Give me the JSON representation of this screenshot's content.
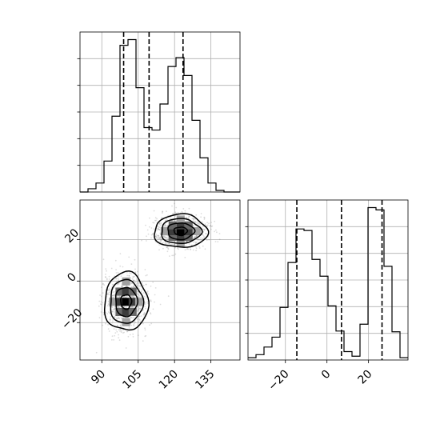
{
  "chart_data": [
    {
      "type": "histogram",
      "variable": "x",
      "xlim": [
        81,
        147
      ],
      "bins": {
        "start": 81,
        "width": 3.3
      },
      "counts": [
        0,
        4,
        11,
        38,
        93,
        180,
        187,
        128,
        79,
        76,
        108,
        154,
        165,
        143,
        88,
        42,
        11,
        2,
        0,
        0
      ],
      "quantile_lines": [
        99,
        109.5,
        123.5
      ],
      "grid": true,
      "ticks_visible": false
    },
    {
      "type": "histogram",
      "variable": "y",
      "xlim": [
        -38,
        39
      ],
      "bins": {
        "start": -38,
        "width": 3.85
      },
      "counts": [
        3,
        7,
        17,
        30,
        69,
        128,
        172,
        170,
        132,
        110,
        71,
        38,
        11,
        5,
        47,
        200,
        197,
        123,
        37,
        3
      ],
      "quantile_lines": [
        -14.5,
        7,
        26.5
      ],
      "grid": true,
      "ticks_visible": false
    },
    {
      "type": "2d-histogram",
      "x_variable": "x",
      "y_variable": "y",
      "xlim": [
        81,
        147
      ],
      "ylim": [
        -38,
        39
      ],
      "xticks": [
        90,
        105,
        120,
        135
      ],
      "yticks": [
        -20,
        0,
        20
      ],
      "clusters": [
        {
          "center": [
            100,
            -10
          ],
          "spread": [
            4.5,
            7
          ]
        },
        {
          "center": [
            122.5,
            24
          ],
          "spread": [
            5.5,
            4
          ]
        }
      ],
      "contour_levels": [
        "0.5-sigma",
        "1-sigma",
        "1.5-sigma",
        "2-sigma"
      ],
      "grid": true
    }
  ]
}
